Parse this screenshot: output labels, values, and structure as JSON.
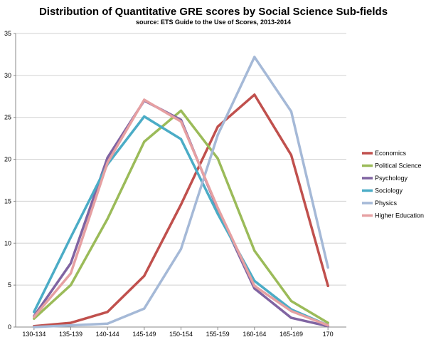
{
  "chart_data": {
    "type": "line",
    "title": "Distribution of Quantitative GRE scores by Social Science Sub-fields",
    "subtitle": "source: ETS Guide to the Use of Scores, 2013-2014",
    "xlabel": "",
    "ylabel": "",
    "categories": [
      "130-134",
      "135-139",
      "140-144",
      "145-149",
      "150-154",
      "155-159",
      "160-164",
      "165-169",
      "170"
    ],
    "y_ticks": [
      "0",
      "5",
      "10",
      "15",
      "20",
      "25",
      "30",
      "35"
    ],
    "ylim": [
      0,
      35
    ],
    "grid": true,
    "legend_position": "right",
    "series": [
      {
        "name": "Economics",
        "color": "#c0504d",
        "values": [
          0.1,
          0.5,
          1.8,
          6.1,
          14.6,
          23.9,
          27.7,
          20.5,
          4.9
        ]
      },
      {
        "name": "Political Science",
        "color": "#9bbb59",
        "values": [
          1.0,
          5.0,
          12.9,
          22.1,
          25.8,
          20.1,
          9.1,
          3.1,
          0.5
        ]
      },
      {
        "name": "Psychology",
        "color": "#8064a2",
        "values": [
          1.3,
          7.6,
          20.2,
          27.0,
          24.7,
          14.0,
          4.6,
          1.1,
          0.1
        ]
      },
      {
        "name": "Sociology",
        "color": "#4bacc6",
        "values": [
          1.8,
          10.7,
          19.4,
          25.1,
          22.4,
          13.5,
          5.5,
          2.1,
          0.2
        ]
      },
      {
        "name": "Physics",
        "color": "#a5b9d7",
        "values": [
          0.0,
          0.2,
          0.4,
          2.2,
          9.3,
          22.9,
          32.2,
          25.7,
          7.1
        ]
      },
      {
        "name": "Higher Education",
        "color": "#e6a0a2",
        "values": [
          1.2,
          6.4,
          19.6,
          27.1,
          24.5,
          14.2,
          4.9,
          1.9,
          0.2
        ]
      }
    ]
  }
}
